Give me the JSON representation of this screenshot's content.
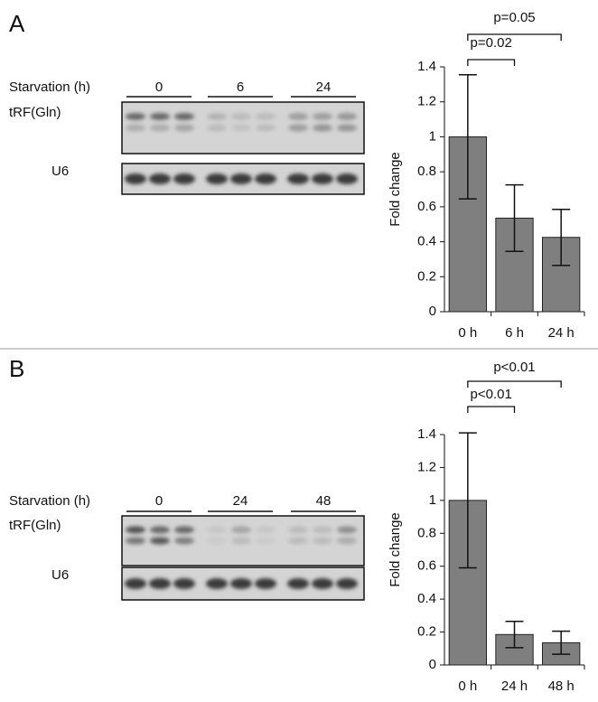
{
  "chart_data": [
    {
      "type": "bar",
      "panel": "A",
      "blot": {
        "row_label": "Starvation (h)",
        "groups": [
          "0",
          "6",
          "24"
        ],
        "bands": [
          "tRF(Gln)",
          "U6"
        ]
      },
      "ylabel": "Fold change",
      "categories": [
        "0 h",
        "6 h",
        "24 h"
      ],
      "values": [
        1,
        0.535,
        0.425
      ],
      "errors": [
        0.355,
        0.19,
        0.16
      ],
      "color": "#7f7f7f",
      "ylim": [
        0,
        1.4
      ],
      "yticks": [
        0,
        0.2,
        0.4,
        0.6,
        0.8,
        1,
        1.2,
        1.4
      ],
      "annotations": [
        "p=0.02",
        "p=0.05"
      ]
    },
    {
      "type": "bar",
      "panel": "B",
      "blot": {
        "row_label": "Starvation (h)",
        "groups": [
          "0",
          "24",
          "48"
        ],
        "bands": [
          "tRF(Gln)",
          "U6"
        ]
      },
      "ylabel": "Fold change",
      "categories": [
        "0 h",
        "24 h",
        "48 h"
      ],
      "values": [
        1,
        0.185,
        0.135
      ],
      "errors": [
        0.41,
        0.08,
        0.07
      ],
      "color": "#7f7f7f",
      "ylim": [
        0,
        1.4
      ],
      "yticks": [
        0,
        0.2,
        0.4,
        0.6,
        0.8,
        1,
        1.2,
        1.4
      ],
      "annotations": [
        "p<0.01",
        "p<0.01"
      ]
    }
  ]
}
